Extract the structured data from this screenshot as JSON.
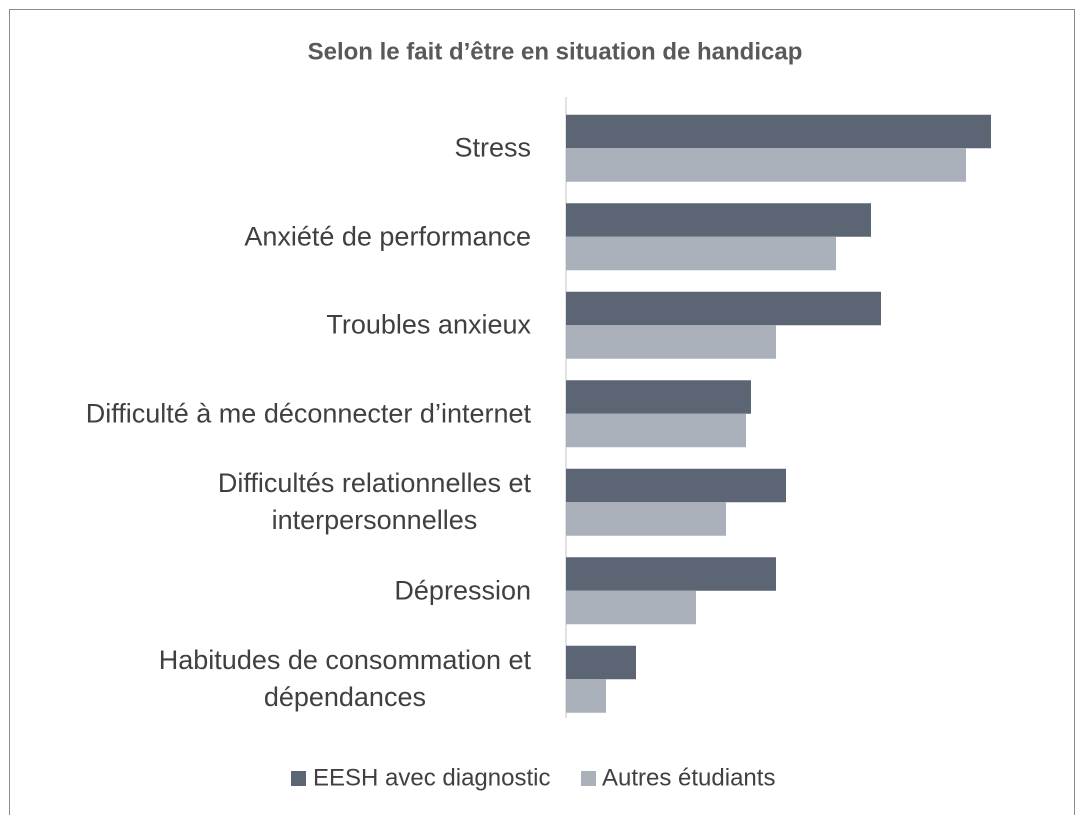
{
  "chart_data": {
    "type": "barh",
    "title": "Selon le fait d’être en situation de handicap",
    "categories": [
      "Stress",
      "Anxiété de performance",
      "Troubles anxieux",
      "Difficulté à me déconnecter d’internet",
      "Difficultés relationnelles et\ninterpersonnelles",
      "Dépression",
      "Habitudes de consommation et\ndépendances"
    ],
    "series": [
      {
        "name": "EESH avec diagnostic",
        "color": "#5b6574",
        "values": [
          85,
          61,
          63,
          37,
          44,
          42,
          14
        ]
      },
      {
        "name": "Autres étudiants",
        "color": "#a9b0b9",
        "values": [
          80,
          54,
          42,
          36,
          32,
          26,
          8
        ]
      }
    ],
    "xlim": [
      0,
      100
    ],
    "legend": "bottom"
  }
}
